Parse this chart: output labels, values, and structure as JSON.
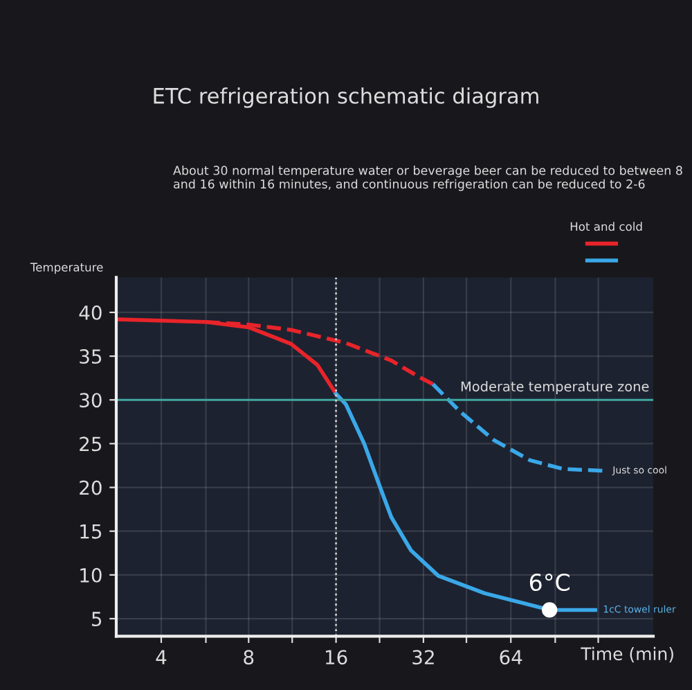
{
  "chart_data": {
    "type": "line",
    "title": "ETC refrigeration schematic diagram",
    "subtitle": "About 30 normal temperature water or beverage beer can be reduced to between 8 and 16 within 16 minutes, and continuous refrigeration can be reduced to 2-6",
    "xlabel": "Time (min)",
    "ylabel": "Temperature",
    "legend_title": "Hot and cold",
    "legend": "top right",
    "log": "x",
    "xlim": [
      2.8,
      198
    ],
    "ylim": [
      3,
      44
    ],
    "xticks": [
      4,
      {
        "value": 5.7,
        "label": null
      },
      8,
      {
        "value": 11.3,
        "label": null
      },
      16,
      {
        "value": 22.6,
        "label": null
      },
      32,
      {
        "value": 45,
        "label": null
      },
      64,
      {
        "value": 91,
        "label": null
      },
      {
        "value": 128,
        "label": null
      }
    ],
    "yticks": [
      5,
      10,
      15,
      20,
      25,
      30,
      35,
      40
    ],
    "grid": true,
    "marker": "none",
    "series": [
      {
        "color": "#e8242a",
        "line_style": "solid",
        "x": [
          2.87,
          5.7,
          8,
          11.2,
          13.8,
          16
        ],
        "values": [
          39.2,
          38.9,
          38.3,
          36.4,
          34,
          30.7
        ]
      },
      {
        "color": "#3aa8e8",
        "line_style": "solid",
        "x": [
          16,
          17.3,
          20,
          22.3,
          24.8,
          29,
          36,
          52,
          87,
          125
        ],
        "values": [
          30.7,
          29.5,
          25,
          20.7,
          16.6,
          12.8,
          9.9,
          7.9,
          6,
          6
        ]
      },
      {
        "color": "#e8242a",
        "line_style": "dashed",
        "x": [
          5.7,
          8,
          11.2,
          17.3,
          24.8,
          31,
          34.5
        ],
        "values": [
          38.9,
          38.6,
          38,
          36.5,
          34.5,
          32.6,
          31.8
        ]
      },
      {
        "color": "#3aa8e8",
        "line_style": "dashed",
        "x": [
          34.5,
          43,
          56,
          74.5,
          97,
          135
        ],
        "values": [
          31.8,
          28.6,
          25.4,
          23.1,
          22.1,
          21.9
        ]
      }
    ],
    "ref_lines": [
      {
        "axis": "y",
        "value": 30,
        "label": "Moderate temperature zone",
        "color": "#3fa7a0",
        "line_style": "solid"
      },
      {
        "axis": "x",
        "value": 16,
        "color": "#cccccc",
        "line_style": "dotted"
      }
    ],
    "annotations": [
      {
        "text": "6°C",
        "x": 87,
        "y": 6
      },
      {
        "text": "1cC towel ruler",
        "x": 125,
        "y": 6
      },
      {
        "text": "Just so cool",
        "x": 135,
        "y": 21.9
      }
    ]
  }
}
